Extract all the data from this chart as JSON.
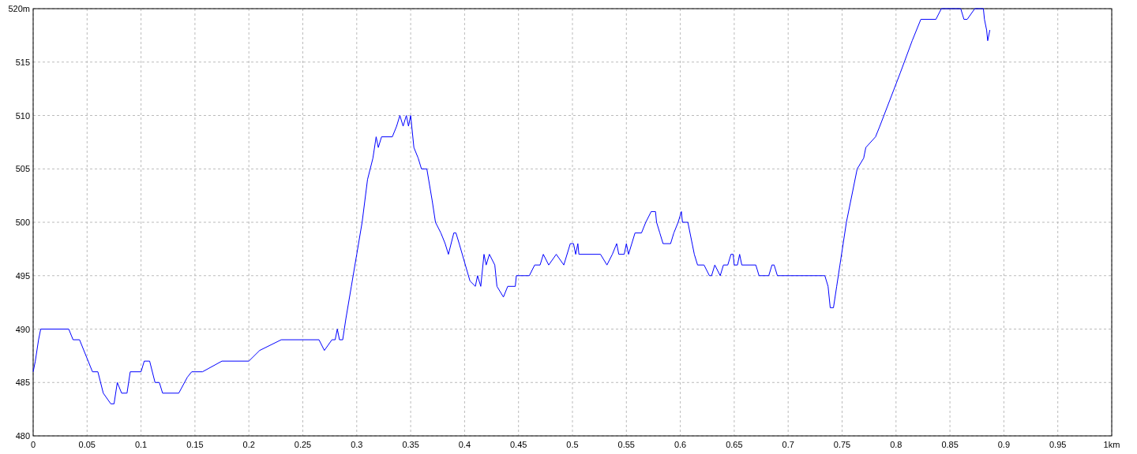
{
  "chart_data": {
    "type": "line",
    "x": [
      0,
      0.002,
      0.005,
      0.007,
      0.033,
      0.037,
      0.043,
      0.055,
      0.06,
      0.065,
      0.072,
      0.075,
      0.078,
      0.082,
      0.087,
      0.09,
      0.1,
      0.103,
      0.108,
      0.113,
      0.117,
      0.12,
      0.135,
      0.143,
      0.147,
      0.157,
      0.175,
      0.2,
      0.21,
      0.23,
      0.265,
      0.27,
      0.277,
      0.28,
      0.282,
      0.284,
      0.287,
      0.29,
      0.295,
      0.3,
      0.305,
      0.31,
      0.315,
      0.318,
      0.32,
      0.323,
      0.333,
      0.337,
      0.34,
      0.343,
      0.346,
      0.348,
      0.35,
      0.353,
      0.357,
      0.36,
      0.365,
      0.37,
      0.373,
      0.378,
      0.382,
      0.385,
      0.39,
      0.392,
      0.395,
      0.405,
      0.41,
      0.412,
      0.415,
      0.418,
      0.42,
      0.423,
      0.428,
      0.43,
      0.436,
      0.44,
      0.447,
      0.448,
      0.46,
      0.465,
      0.47,
      0.473,
      0.478,
      0.485,
      0.492,
      0.498,
      0.501,
      0.503,
      0.505,
      0.506,
      0.526,
      0.532,
      0.537,
      0.541,
      0.543,
      0.548,
      0.55,
      0.552,
      0.555,
      0.558,
      0.564,
      0.568,
      0.573,
      0.577,
      0.578,
      0.581,
      0.584,
      0.591,
      0.594,
      0.598,
      0.601,
      0.602,
      0.607,
      0.611,
      0.613,
      0.616,
      0.622,
      0.627,
      0.629,
      0.632,
      0.637,
      0.64,
      0.644,
      0.647,
      0.649,
      0.65,
      0.653,
      0.655,
      0.657,
      0.67,
      0.673,
      0.682,
      0.685,
      0.687,
      0.69,
      0.734,
      0.737,
      0.739,
      0.742,
      0.745,
      0.748,
      0.754,
      0.764,
      0.77,
      0.772,
      0.781,
      0.785,
      0.804,
      0.815,
      0.823,
      0.837,
      0.842,
      0.86,
      0.863,
      0.866,
      0.873,
      0.881,
      0.882,
      0.884,
      0.885,
      0.887
    ],
    "series": [
      {
        "color": "#0000ff",
        "values": [
          486,
          487,
          489,
          490,
          490,
          489,
          489,
          486,
          486,
          484,
          483,
          483,
          485,
          484,
          484,
          486,
          486,
          487,
          487,
          485,
          485,
          484,
          484,
          485.5,
          486,
          486,
          487,
          487,
          488,
          489,
          489,
          488,
          489,
          489,
          490,
          489,
          489,
          491,
          494,
          497,
          500,
          504,
          506,
          508,
          507,
          508,
          508,
          509,
          510,
          509,
          510,
          509,
          510,
          507,
          506,
          505,
          505,
          502,
          500,
          499,
          498,
          497,
          499,
          499,
          498,
          494.5,
          494,
          495,
          494,
          497,
          496,
          497,
          496,
          494,
          493,
          494,
          494,
          495,
          495,
          496,
          496,
          497,
          496,
          497,
          496,
          498,
          498,
          497,
          498,
          497,
          497,
          496,
          497,
          498,
          497,
          497,
          498,
          497,
          498,
          499,
          499,
          500,
          501,
          501,
          500,
          499,
          498,
          498,
          499,
          500,
          501,
          500,
          500,
          498,
          497,
          496,
          496,
          495,
          495,
          496,
          495,
          496,
          496,
          497,
          497,
          496,
          496,
          497,
          496,
          496,
          495,
          495,
          496,
          496,
          495,
          495,
          494,
          492,
          492,
          494,
          496,
          500,
          505,
          506,
          507,
          508,
          509,
          514,
          517,
          519,
          519,
          520,
          520,
          519,
          519,
          520,
          520,
          519,
          518,
          517,
          518
        ]
      }
    ],
    "xlim": [
      0,
      1
    ],
    "xticks": [
      0,
      0.05,
      0.1,
      0.15,
      0.2,
      0.25,
      0.3,
      0.35,
      0.4,
      0.45,
      0.5,
      0.55,
      0.6,
      0.65,
      0.7,
      0.75,
      0.8,
      0.85,
      0.9,
      0.95,
      {
        "value": 1,
        "label": "1km"
      }
    ],
    "ylim": [
      480,
      520
    ],
    "yticks": [
      480,
      485,
      490,
      495,
      500,
      505,
      510,
      515,
      {
        "value": 520,
        "label": "520m"
      }
    ],
    "grid": true,
    "line_style": "solid",
    "marker": "none"
  }
}
